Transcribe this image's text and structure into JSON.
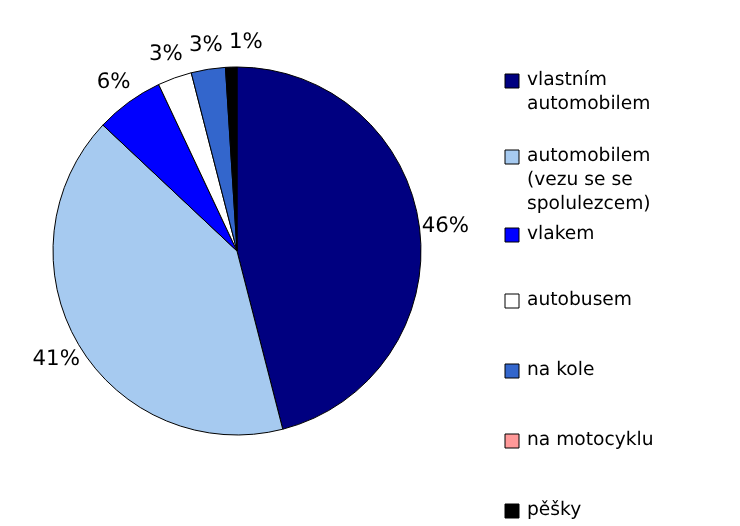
{
  "chart_data": {
    "type": "pie",
    "categories": [
      "vlastním automobilem",
      "automobilem (vezu se se spolulezcem)",
      "vlakem",
      "autobusem",
      "na kole",
      "na motocyklu",
      "pěšky"
    ],
    "values": [
      46,
      41,
      6,
      3,
      3,
      0,
      1
    ],
    "value_labels": [
      "46%",
      "41%",
      "6%",
      "3%",
      "3%",
      null,
      "1%"
    ],
    "colors": [
      "#000080",
      "#a6caf0",
      "#0000ff",
      "#ffffff",
      "#3366cc",
      "#ff9999",
      "#000000"
    ],
    "legend": "right"
  }
}
